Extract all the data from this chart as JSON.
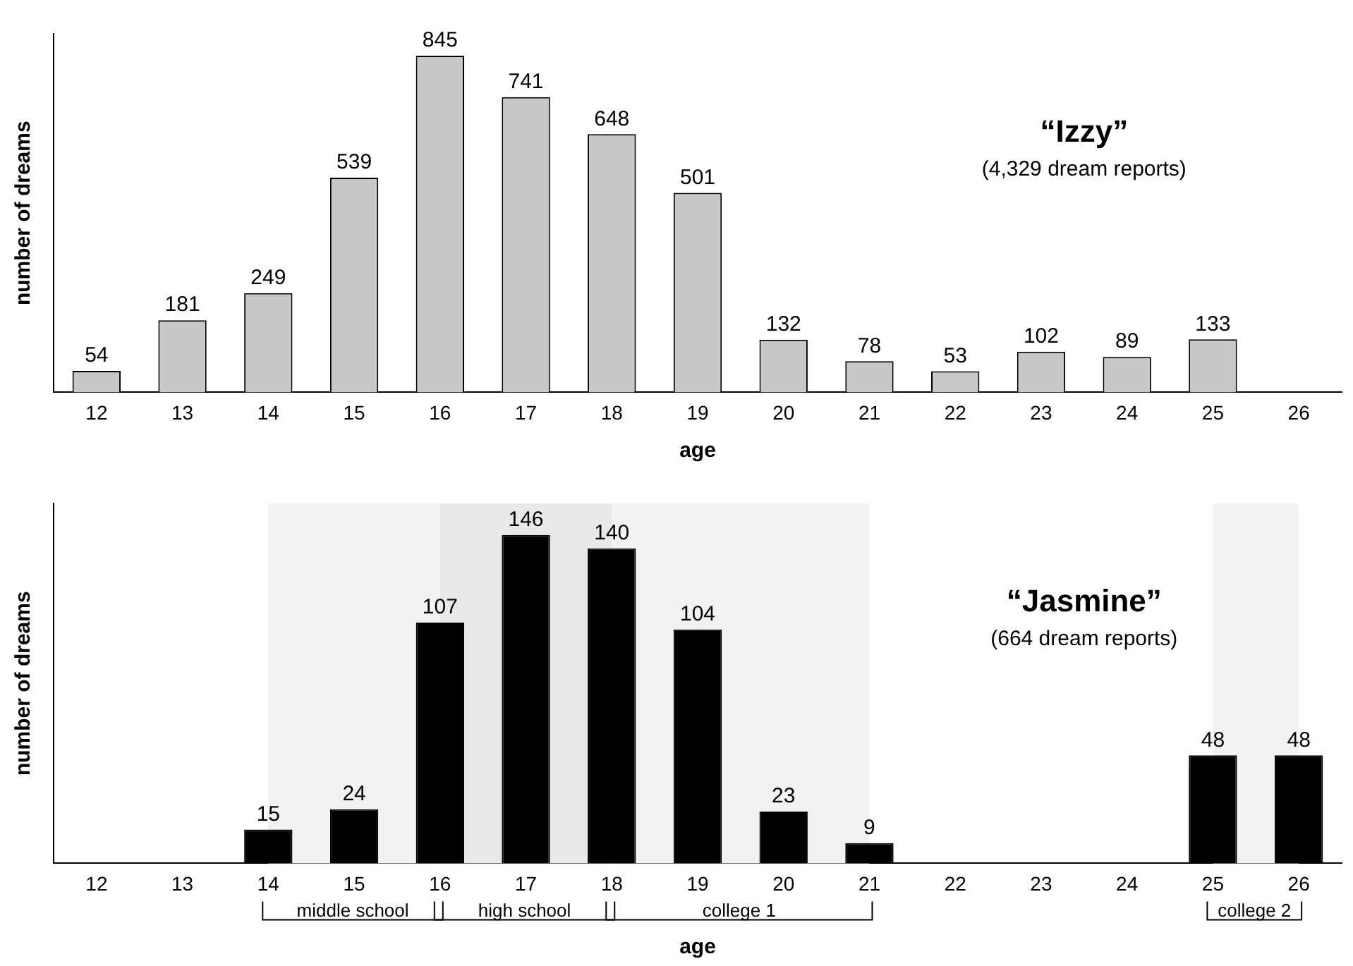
{
  "chart_data": [
    {
      "type": "bar",
      "title": "“Izzy”",
      "subtitle": "(4,329 dream reports)",
      "xlabel": "age",
      "ylabel": "number of dreams",
      "categories": [
        "12",
        "13",
        "14",
        "15",
        "16",
        "17",
        "18",
        "19",
        "20",
        "21",
        "22",
        "23",
        "24",
        "25",
        "26"
      ],
      "values": [
        54,
        181,
        249,
        539,
        845,
        741,
        648,
        501,
        132,
        78,
        53,
        102,
        89,
        133,
        null
      ],
      "color": "#c8c8c8",
      "data_labels": true,
      "grid": false,
      "legend": false
    },
    {
      "type": "bar",
      "title": "“Jasmine”",
      "subtitle": "(664 dream reports)",
      "xlabel": "age",
      "ylabel": "number of dreams",
      "categories": [
        "12",
        "13",
        "14",
        "15",
        "16",
        "17",
        "18",
        "19",
        "20",
        "21",
        "22",
        "23",
        "24",
        "25",
        "26"
      ],
      "values": [
        null,
        null,
        15,
        24,
        107,
        146,
        140,
        104,
        23,
        9,
        null,
        null,
        null,
        48,
        48
      ],
      "color": "#000000",
      "data_labels": true,
      "grid": false,
      "legend": false,
      "bands": [
        {
          "axis": "x",
          "from": "14",
          "to": "16",
          "label": "middle school",
          "color": "#f2f2f2"
        },
        {
          "axis": "x",
          "from": "16",
          "to": "18",
          "label": "high school",
          "color": "#e9e9e9"
        },
        {
          "axis": "x",
          "from": "18",
          "to": "21",
          "label": "college 1",
          "color": "#f2f2f2"
        },
        {
          "axis": "x",
          "from": "25",
          "to": "26",
          "label": "college 2",
          "color": "#f2f2f2"
        }
      ]
    }
  ]
}
